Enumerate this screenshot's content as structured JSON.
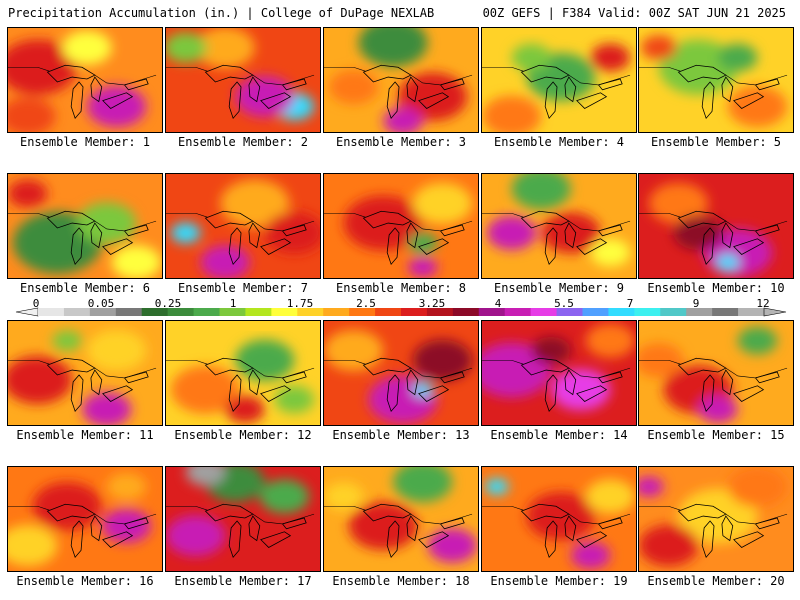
{
  "header": {
    "left_title": "Precipitation Accumulation (in.) | College of DuPage NEXLAB",
    "right_title": "00Z GEFS | F384 Valid: 00Z SAT JUN 21 2025"
  },
  "colorbar": {
    "tick_labels": [
      "0",
      "0.05",
      "0.25",
      "1",
      "1.75",
      "2.5",
      "3.25",
      "4",
      "5.5",
      "7",
      "9",
      "12"
    ],
    "colors": [
      "#e6e6e6",
      "#c8c8c8",
      "#a0a0a0",
      "#787878",
      "#2e6e2e",
      "#3c8c3c",
      "#4caa4c",
      "#7cc83c",
      "#b4e61e",
      "#ffff3c",
      "#ffd228",
      "#ffaa1e",
      "#ff7814",
      "#f04614",
      "#dc1e1e",
      "#b4141e",
      "#8c0a28",
      "#a0148c",
      "#c81eb4",
      "#e63ce6",
      "#8c64f0",
      "#50a0ff",
      "#32dcff",
      "#3cf0f0",
      "#50c8c8",
      "#a0a0a0",
      "#787878",
      "#b4b4b4"
    ]
  },
  "panels": [
    {
      "label": "Ensemble Member: 1",
      "base": "#ff8c1e",
      "blobs": [
        [
          "#dc1e1e",
          30,
          40,
          40
        ],
        [
          "#c81eb4",
          110,
          80,
          30
        ],
        [
          "#ffff3c",
          80,
          20,
          25
        ],
        [
          "#f04614",
          20,
          90,
          28
        ]
      ]
    },
    {
      "label": "Ensemble Member: 2",
      "base": "#f04614",
      "blobs": [
        [
          "#32dcff",
          130,
          80,
          20
        ],
        [
          "#c81eb4",
          100,
          70,
          30
        ],
        [
          "#ffaa1e",
          60,
          20,
          30
        ],
        [
          "#7cc83c",
          20,
          20,
          22
        ]
      ]
    },
    {
      "label": "Ensemble Member: 3",
      "base": "#ffaa1e",
      "blobs": [
        [
          "#3c8c3c",
          70,
          15,
          35
        ],
        [
          "#dc1e1e",
          110,
          70,
          35
        ],
        [
          "#c81eb4",
          80,
          95,
          20
        ],
        [
          "#ff7814",
          30,
          60,
          25
        ]
      ]
    },
    {
      "label": "Ensemble Member: 4",
      "base": "#ffd228",
      "blobs": [
        [
          "#4caa4c",
          80,
          50,
          35
        ],
        [
          "#ff7814",
          30,
          90,
          30
        ],
        [
          "#dc1e1e",
          130,
          30,
          20
        ],
        [
          "#7cc83c",
          50,
          30,
          20
        ]
      ]
    },
    {
      "label": "Ensemble Member: 5",
      "base": "#ffd228",
      "blobs": [
        [
          "#7cc83c",
          60,
          40,
          40
        ],
        [
          "#ff7814",
          120,
          80,
          30
        ],
        [
          "#4caa4c",
          100,
          30,
          20
        ],
        [
          "#f04614",
          20,
          20,
          18
        ]
      ]
    },
    {
      "label": "Ensemble Member: 6",
      "base": "#ff8c1e",
      "blobs": [
        [
          "#3c8c3c",
          50,
          70,
          45
        ],
        [
          "#7cc83c",
          100,
          50,
          30
        ],
        [
          "#dc1e1e",
          20,
          20,
          20
        ],
        [
          "#ffff3c",
          130,
          90,
          25
        ]
      ]
    },
    {
      "label": "Ensemble Member: 7",
      "base": "#f04614",
      "blobs": [
        [
          "#32dcff",
          20,
          60,
          15
        ],
        [
          "#ffaa1e",
          90,
          30,
          35
        ],
        [
          "#c81eb4",
          60,
          90,
          25
        ],
        [
          "#dc1e1e",
          130,
          60,
          30
        ]
      ]
    },
    {
      "label": "Ensemble Member: 8",
      "base": "#ff7814",
      "blobs": [
        [
          "#dc1e1e",
          60,
          50,
          40
        ],
        [
          "#ffd228",
          120,
          30,
          30
        ],
        [
          "#c81eb4",
          100,
          95,
          15
        ],
        [
          "#4caa4c",
          100,
          70,
          15
        ]
      ]
    },
    {
      "label": "Ensemble Member: 9",
      "base": "#ffaa1e",
      "blobs": [
        [
          "#4caa4c",
          60,
          15,
          30
        ],
        [
          "#c81eb4",
          30,
          60,
          25
        ],
        [
          "#dc1e1e",
          90,
          60,
          30
        ],
        [
          "#ffff3c",
          130,
          80,
          20
        ]
      ]
    },
    {
      "label": "Ensemble Member: 10",
      "base": "#dc1e1e",
      "blobs": [
        [
          "#c81eb4",
          100,
          80,
          35
        ],
        [
          "#32dcff",
          90,
          90,
          12
        ],
        [
          "#ff7814",
          40,
          30,
          30
        ],
        [
          "#8c0a28",
          60,
          60,
          25
        ]
      ]
    },
    {
      "label": "Ensemble Member: 11",
      "base": "#ffaa1e",
      "blobs": [
        [
          "#dc1e1e",
          30,
          60,
          35
        ],
        [
          "#c81eb4",
          100,
          90,
          25
        ],
        [
          "#ffd228",
          110,
          30,
          30
        ],
        [
          "#7cc83c",
          60,
          20,
          15
        ]
      ]
    },
    {
      "label": "Ensemble Member: 12",
      "base": "#ffd228",
      "blobs": [
        [
          "#4caa4c",
          100,
          40,
          30
        ],
        [
          "#ff7814",
          40,
          70,
          35
        ],
        [
          "#dc1e1e",
          80,
          90,
          20
        ],
        [
          "#7cc83c",
          130,
          80,
          20
        ]
      ]
    },
    {
      "label": "Ensemble Member: 13",
      "base": "#f04614",
      "blobs": [
        [
          "#c81eb4",
          80,
          80,
          35
        ],
        [
          "#8c0a28",
          120,
          40,
          30
        ],
        [
          "#ffaa1e",
          30,
          30,
          30
        ],
        [
          "#32dcff",
          100,
          70,
          10
        ]
      ]
    },
    {
      "label": "Ensemble Member: 14",
      "base": "#dc1e1e",
      "blobs": [
        [
          "#c81eb4",
          30,
          50,
          40
        ],
        [
          "#e63ce6",
          100,
          70,
          30
        ],
        [
          "#ff7814",
          130,
          20,
          25
        ],
        [
          "#8c0a28",
          70,
          30,
          20
        ]
      ]
    },
    {
      "label": "Ensemble Member: 15",
      "base": "#ffaa1e",
      "blobs": [
        [
          "#dc1e1e",
          60,
          70,
          35
        ],
        [
          "#4caa4c",
          120,
          20,
          20
        ],
        [
          "#c81eb4",
          80,
          90,
          20
        ],
        [
          "#ff7814",
          20,
          40,
          25
        ]
      ]
    },
    {
      "label": "Ensemble Member: 16",
      "base": "#ff7814",
      "blobs": [
        [
          "#dc1e1e",
          60,
          40,
          35
        ],
        [
          "#ffd228",
          20,
          80,
          30
        ],
        [
          "#c81eb4",
          120,
          60,
          25
        ],
        [
          "#ffaa1e",
          120,
          20,
          20
        ]
      ]
    },
    {
      "label": "Ensemble Member: 17",
      "base": "#dc1e1e",
      "blobs": [
        [
          "#3c8c3c",
          70,
          15,
          30
        ],
        [
          "#a0a0a0",
          40,
          5,
          20
        ],
        [
          "#c81eb4",
          30,
          70,
          30
        ],
        [
          "#4caa4c",
          120,
          30,
          25
        ]
      ]
    },
    {
      "label": "Ensemble Member: 18",
      "base": "#ffaa1e",
      "blobs": [
        [
          "#4caa4c",
          100,
          15,
          30
        ],
        [
          "#dc1e1e",
          60,
          60,
          35
        ],
        [
          "#c81eb4",
          130,
          80,
          25
        ],
        [
          "#ffd228",
          20,
          30,
          20
        ]
      ]
    },
    {
      "label": "Ensemble Member: 19",
      "base": "#ff7814",
      "blobs": [
        [
          "#32dcff",
          15,
          20,
          12
        ],
        [
          "#dc1e1e",
          80,
          50,
          35
        ],
        [
          "#ffd228",
          130,
          30,
          25
        ],
        [
          "#c81eb4",
          110,
          90,
          20
        ]
      ]
    },
    {
      "label": "Ensemble Member: 20",
      "base": "#ff8c1e",
      "blobs": [
        [
          "#ffd228",
          80,
          50,
          40
        ],
        [
          "#dc1e1e",
          30,
          80,
          30
        ],
        [
          "#ff7814",
          120,
          20,
          30
        ],
        [
          "#c81eb4",
          10,
          20,
          15
        ]
      ]
    }
  ]
}
